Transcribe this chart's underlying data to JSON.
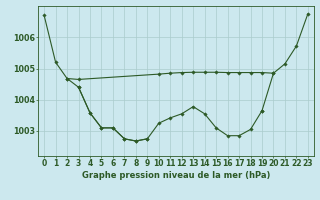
{
  "title": "Graphe pression niveau de la mer (hPa)",
  "background_color": "#cce8ee",
  "grid_color": "#aacccc",
  "line_color": "#2d5a27",
  "ylim": [
    1002.2,
    1007.0
  ],
  "yticks": [
    1003,
    1004,
    1005,
    1006
  ],
  "ytick_labels": [
    "1003",
    "1004",
    "1005",
    "1006"
  ],
  "x_labels": [
    "0",
    "1",
    "2",
    "3",
    "4",
    "5",
    "6",
    "7",
    "8",
    "9",
    "10",
    "11",
    "12",
    "13",
    "14",
    "15",
    "16",
    "17",
    "18",
    "19",
    "20",
    "21",
    "22",
    "23"
  ],
  "line_A_x": [
    0,
    1,
    2,
    3,
    10,
    11,
    12,
    13,
    14,
    15,
    16,
    17,
    18,
    19,
    20
  ],
  "line_A_y": [
    1006.7,
    1005.2,
    1004.68,
    1004.65,
    1004.82,
    1004.85,
    1004.87,
    1004.88,
    1004.88,
    1004.88,
    1004.87,
    1004.87,
    1004.87,
    1004.87,
    1004.85
  ],
  "line_B_x": [
    2,
    3,
    4,
    5,
    6,
    7,
    8,
    9
  ],
  "line_B_y": [
    1004.68,
    1004.4,
    1003.58,
    1003.1,
    1003.1,
    1002.75,
    1002.68,
    1002.75
  ],
  "line_C_x": [
    3,
    4,
    5,
    6,
    7,
    8,
    9,
    10,
    11,
    12,
    13,
    14,
    15,
    16,
    17,
    18,
    19
  ],
  "line_C_y": [
    1004.4,
    1003.58,
    1003.1,
    1003.1,
    1002.75,
    1002.68,
    1002.75,
    1003.25,
    1003.42,
    1003.55,
    1003.78,
    1003.55,
    1003.1,
    1002.85,
    1002.85,
    1003.05,
    1003.65
  ],
  "line_D_x": [
    19,
    20,
    21,
    22,
    23
  ],
  "line_D_y": [
    1003.65,
    1004.85,
    1005.15,
    1005.72,
    1006.75
  ],
  "title_fontsize": 6.0,
  "tick_fontsize": 5.5
}
